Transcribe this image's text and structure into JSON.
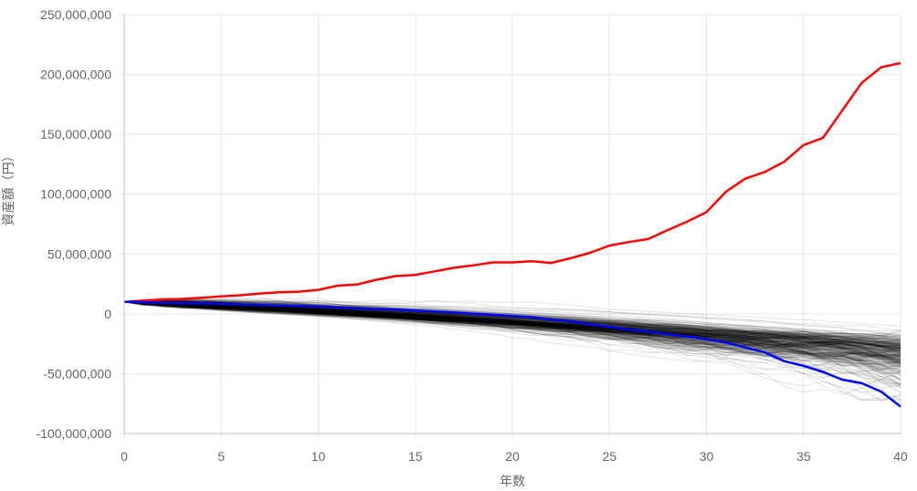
{
  "chart_data": {
    "type": "line",
    "title": "",
    "xlabel": "年数",
    "ylabel": "資産額（円）",
    "xlim": [
      0,
      40
    ],
    "ylim": [
      -100000000,
      250000000
    ],
    "x_ticks": [
      0,
      5,
      10,
      15,
      20,
      25,
      30,
      35,
      40
    ],
    "x_tick_labels": [
      "0",
      "5",
      "10",
      "15",
      "20",
      "25",
      "30",
      "35",
      "40"
    ],
    "y_ticks": [
      -100000000,
      -50000000,
      0,
      50000000,
      100000000,
      150000000,
      200000000,
      250000000
    ],
    "y_tick_labels": [
      "-100,000,000",
      "-50,000,000",
      "0",
      "50,000,000",
      "100,000,000",
      "150,000,000",
      "200,000,000",
      "250,000,000"
    ],
    "grid": true,
    "legend": "none",
    "initial_value": 10000000,
    "background_series": {
      "color": "#000000",
      "count": 300,
      "description_visible": false
    },
    "series": [
      {
        "color": "#ff0000",
        "x": [
          0,
          1,
          2,
          3,
          4,
          5,
          6,
          7,
          8,
          9,
          10,
          11,
          12,
          13,
          14,
          15,
          16,
          17,
          18,
          19,
          20,
          21,
          22,
          23,
          24,
          25,
          26,
          27,
          28,
          29,
          30,
          31,
          32,
          33,
          34,
          35,
          36,
          37,
          38,
          39,
          40
        ],
        "values": [
          10000000,
          11000000,
          12000000,
          12500000,
          13500000,
          14500000,
          15500000,
          17000000,
          18000000,
          18500000,
          20000000,
          23500000,
          24500000,
          28500000,
          31500000,
          32500000,
          35500000,
          38500000,
          40500000,
          43000000,
          43000000,
          44000000,
          42500000,
          46500000,
          51000000,
          57000000,
          60000000,
          62500000,
          70000000,
          77000000,
          85000000,
          102000000,
          113000000,
          118500000,
          127000000,
          141000000,
          147000000,
          170000000,
          193000000,
          206000000,
          209500000
        ]
      },
      {
        "color": "#0000ff",
        "x": [
          0,
          1,
          2,
          3,
          4,
          5,
          6,
          7,
          8,
          9,
          10,
          11,
          12,
          13,
          14,
          15,
          16,
          17,
          18,
          19,
          20,
          21,
          22,
          23,
          24,
          25,
          26,
          27,
          28,
          29,
          30,
          31,
          32,
          33,
          34,
          35,
          36,
          37,
          38,
          39,
          40
        ],
        "values": [
          10000000,
          9800000,
          9200000,
          9000000,
          8800000,
          8300000,
          7800000,
          7300000,
          7000000,
          6700000,
          6200000,
          5300000,
          4600000,
          4000000,
          3500000,
          2800000,
          1900000,
          1100000,
          100000,
          -800000,
          -1800000,
          -2800000,
          -4800000,
          -6200000,
          -8800000,
          -10800000,
          -13300000,
          -14600000,
          -17200000,
          -19000000,
          -21300000,
          -24000000,
          -28000000,
          -32300000,
          -39500000,
          -43500000,
          -48500000,
          -55000000,
          -58000000,
          -65000000,
          -77500000
        ]
      }
    ]
  }
}
